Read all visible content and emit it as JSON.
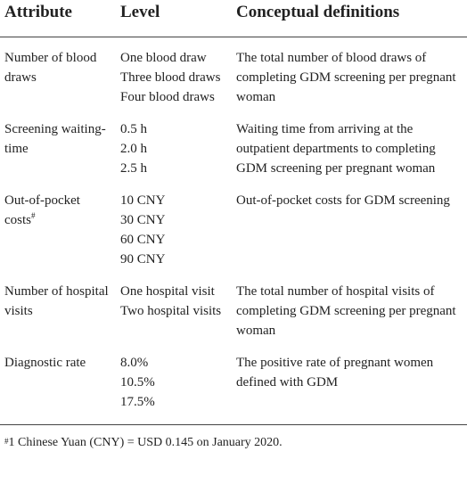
{
  "table": {
    "headers": [
      "Attribute",
      "Level",
      "Conceptual definitions"
    ],
    "rows": [
      {
        "attribute": "Number of blood draws",
        "levels": [
          "One blood draw",
          "Three blood draws",
          "Four blood draws"
        ],
        "definition": "The total number of blood draws of completing GDM screening per pregnant woman"
      },
      {
        "attribute": "Screening waiting-time",
        "levels": [
          "0.5 h",
          "2.0 h",
          "2.5 h"
        ],
        "definition": "Waiting time from arriving at the outpatient departments to completing GDM screening per pregnant woman"
      },
      {
        "attribute": "Out-of-pocket costs",
        "note_mark": "#",
        "levels": [
          "10 CNY",
          "30 CNY",
          "60 CNY",
          "90 CNY"
        ],
        "definition": "Out-of-pocket costs for GDM screening"
      },
      {
        "attribute": "Number of hospital visits",
        "levels": [
          "One hospital visit",
          "Two hospital visits"
        ],
        "definition": "The total number of hospital visits of completing GDM screening per pregnant woman"
      },
      {
        "attribute": "Diagnostic rate",
        "levels": [
          "8.0%",
          "10.5%",
          "17.5%"
        ],
        "definition": "The positive rate of pregnant women defined with GDM"
      }
    ]
  },
  "footnote": {
    "mark": "#",
    "text": "1 Chinese Yuan (CNY) = USD 0.145 on January 2020."
  }
}
